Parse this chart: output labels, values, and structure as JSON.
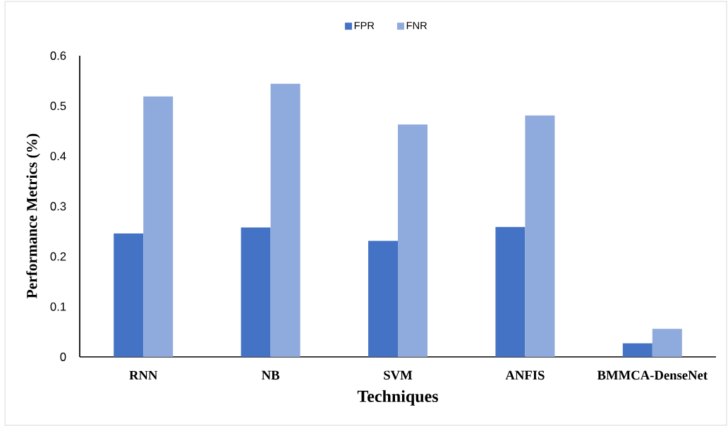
{
  "chart_data": {
    "type": "bar",
    "xlabel": "Techniques",
    "ylabel": "Performance Metrics (%)",
    "categories": [
      "RNN",
      "NB",
      "SVM",
      "ANFIS",
      "BMMCA-DenseNet"
    ],
    "series": [
      {
        "name": "FPR",
        "color": "#4472c4",
        "values": [
          0.246,
          0.258,
          0.231,
          0.259,
          0.027
        ]
      },
      {
        "name": "FNR",
        "color": "#8faadc",
        "values": [
          0.519,
          0.544,
          0.463,
          0.481,
          0.056
        ]
      }
    ],
    "ylim": [
      0,
      0.6
    ],
    "yticks": [
      0,
      0.1,
      0.2,
      0.3,
      0.4,
      0.5,
      0.6
    ],
    "legend": "top"
  }
}
